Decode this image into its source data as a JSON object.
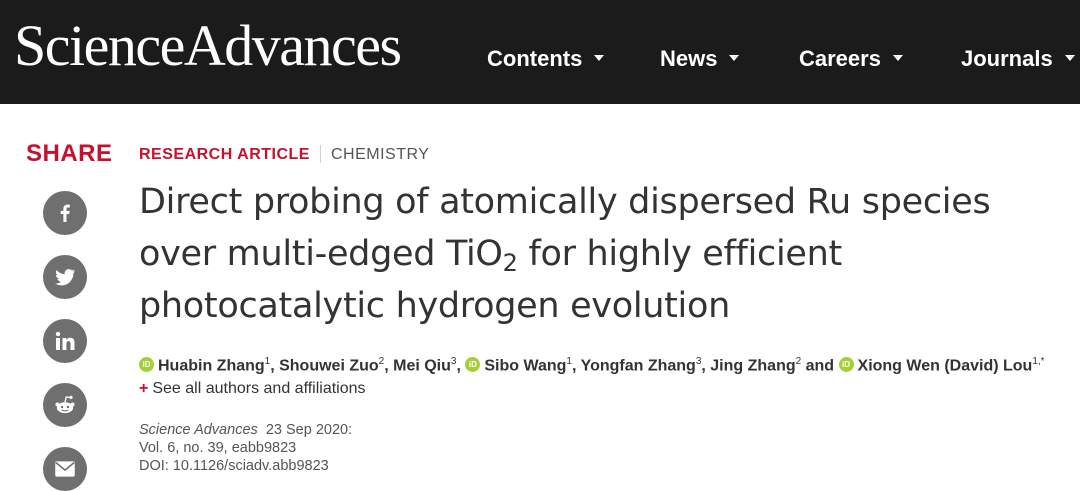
{
  "header": {
    "logo_text": "ScienceAdvances",
    "nav": [
      {
        "label": "Contents"
      },
      {
        "label": "News"
      },
      {
        "label": "Careers"
      },
      {
        "label": "Journals"
      }
    ]
  },
  "share": {
    "label": "SHARE",
    "icons": [
      "facebook-icon",
      "twitter-icon",
      "linkedin-icon",
      "reddit-icon",
      "email-icon"
    ]
  },
  "article": {
    "type": "RESEARCH ARTICLE",
    "subject": "CHEMISTRY",
    "title": {
      "line1": "Direct probing of atomically dispersed Ru species",
      "line2_pre": "over multi-edged TiO",
      "line2_sub": "2",
      "line2_post": " for highly efficient",
      "line3": "photocatalytic hydrogen evolution"
    },
    "authors": [
      {
        "name": "Huabin Zhang",
        "sup": "1",
        "orcid": true
      },
      {
        "name": "Shouwei Zuo",
        "sup": "2",
        "orcid": false
      },
      {
        "name": "Mei Qiu",
        "sup": "3",
        "orcid": false
      },
      {
        "name": "Sibo Wang",
        "sup": "1",
        "orcid": true
      },
      {
        "name": "Yongfan Zhang",
        "sup": "3",
        "orcid": false
      },
      {
        "name": "Jing Zhang",
        "sup": "2",
        "orcid": false
      },
      {
        "name": "Xiong Wen (David) Lou",
        "sup": "1,*",
        "orcid": true
      }
    ],
    "orcid_text": "iD",
    "separator": ", ",
    "and_text": " and ",
    "see_all_plus": "+",
    "see_all": "See all authors and affiliations",
    "citation": {
      "journal": "Science Advances",
      "date": "23 Sep 2020:",
      "volume": "Vol. 6, no. 39, eabb9823",
      "doi": "DOI: 10.1126/sciadv.abb9823"
    }
  },
  "colors": {
    "header_bg": "#1b1b1b",
    "accent_red": "#c8102e",
    "icon_gray": "#6f6f6f",
    "orcid_green": "#a6ce39"
  }
}
